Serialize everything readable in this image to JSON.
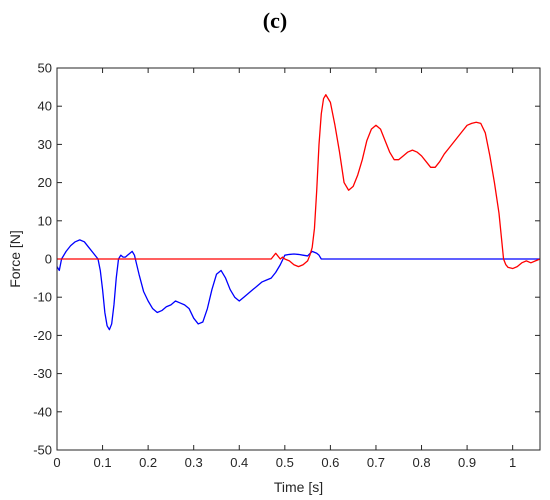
{
  "panel_label": "(c)",
  "chart_data": {
    "type": "line",
    "title": "",
    "xlabel": "Time [s]",
    "ylabel": "Force [N]",
    "xlim": [
      0,
      1.06
    ],
    "ylim": [
      -50,
      50
    ],
    "x_ticks": [
      0,
      0.1,
      0.2,
      0.3,
      0.4,
      0.5,
      0.6,
      0.7,
      0.8,
      0.9,
      1
    ],
    "x_tick_labels": [
      "0",
      "0.1",
      "0.2",
      "0.3",
      "0.4",
      "0.5",
      "0.6",
      "0.7",
      "0.8",
      "0.9",
      "1"
    ],
    "y_ticks": [
      -50,
      -40,
      -30,
      -20,
      -10,
      0,
      10,
      20,
      30,
      40,
      50
    ],
    "y_tick_labels": [
      "-50",
      "-40",
      "-30",
      "-20",
      "-10",
      "0",
      "10",
      "20",
      "30",
      "40",
      "50"
    ],
    "grid": false,
    "legend": "none",
    "series": [
      {
        "color": "#0000ff",
        "x": [
          0,
          0.005,
          0.01,
          0.02,
          0.03,
          0.04,
          0.05,
          0.06,
          0.07,
          0.08,
          0.09,
          0.095,
          0.1,
          0.105,
          0.11,
          0.115,
          0.12,
          0.125,
          0.13,
          0.135,
          0.14,
          0.145,
          0.15,
          0.155,
          0.16,
          0.165,
          0.17,
          0.175,
          0.18,
          0.19,
          0.2,
          0.21,
          0.22,
          0.23,
          0.24,
          0.25,
          0.26,
          0.27,
          0.28,
          0.29,
          0.3,
          0.31,
          0.32,
          0.33,
          0.34,
          0.35,
          0.36,
          0.37,
          0.38,
          0.39,
          0.4,
          0.41,
          0.42,
          0.43,
          0.44,
          0.45,
          0.46,
          0.47,
          0.48,
          0.49,
          0.5,
          0.51,
          0.52,
          0.53,
          0.54,
          0.55,
          0.56,
          0.57,
          0.575,
          0.58,
          0.6,
          0.7,
          0.8,
          0.9,
          1.0,
          1.06
        ],
        "y": [
          -2,
          -3,
          0,
          2,
          3.5,
          4.5,
          5,
          4.5,
          3,
          1.5,
          0,
          -3,
          -8,
          -14,
          -17.5,
          -18.5,
          -17,
          -12,
          -5,
          0,
          1,
          0.5,
          0.5,
          1,
          1.5,
          2,
          1,
          -1.5,
          -4,
          -8.5,
          -11,
          -13,
          -14,
          -13.5,
          -12.5,
          -12,
          -11,
          -11.5,
          -12,
          -13,
          -15.5,
          -17,
          -16.5,
          -13,
          -8,
          -4,
          -3,
          -5,
          -8,
          -10,
          -11,
          -10,
          -9,
          -8,
          -7,
          -6,
          -5.5,
          -5,
          -3.5,
          -1.5,
          1,
          1.2,
          1.3,
          1.2,
          1,
          0.8,
          2,
          1.5,
          1,
          0,
          0,
          0,
          0,
          0,
          0,
          0
        ]
      },
      {
        "color": "#ff0000",
        "x": [
          0,
          0.1,
          0.2,
          0.3,
          0.4,
          0.47,
          0.48,
          0.49,
          0.495,
          0.5,
          0.51,
          0.52,
          0.53,
          0.54,
          0.55,
          0.555,
          0.56,
          0.565,
          0.57,
          0.575,
          0.58,
          0.585,
          0.59,
          0.6,
          0.61,
          0.62,
          0.63,
          0.64,
          0.65,
          0.66,
          0.67,
          0.68,
          0.69,
          0.7,
          0.71,
          0.72,
          0.73,
          0.74,
          0.75,
          0.76,
          0.77,
          0.78,
          0.79,
          0.8,
          0.81,
          0.82,
          0.83,
          0.84,
          0.85,
          0.86,
          0.87,
          0.88,
          0.89,
          0.9,
          0.91,
          0.92,
          0.93,
          0.94,
          0.95,
          0.96,
          0.97,
          0.975,
          0.98,
          0.985,
          0.99,
          1.0,
          1.01,
          1.02,
          1.03,
          1.04,
          1.05,
          1.06
        ],
        "y": [
          0,
          0,
          0,
          0,
          0,
          0,
          1.5,
          0,
          0.5,
          0,
          -0.5,
          -1.5,
          -2,
          -1.5,
          -0.5,
          1,
          3,
          8,
          18,
          30,
          38,
          42,
          43,
          41,
          35,
          28,
          20,
          18,
          19,
          22,
          26,
          31,
          34,
          35,
          34,
          31,
          28,
          26,
          26,
          27,
          28,
          28.5,
          28,
          27,
          25.5,
          24,
          24,
          25.5,
          27.5,
          29,
          30.5,
          32,
          33.5,
          35,
          35.5,
          35.8,
          35.5,
          33,
          27,
          20,
          12,
          6,
          0,
          -1.5,
          -2.2,
          -2.5,
          -2,
          -1,
          -0.5,
          -1,
          -0.5,
          0
        ]
      }
    ]
  }
}
